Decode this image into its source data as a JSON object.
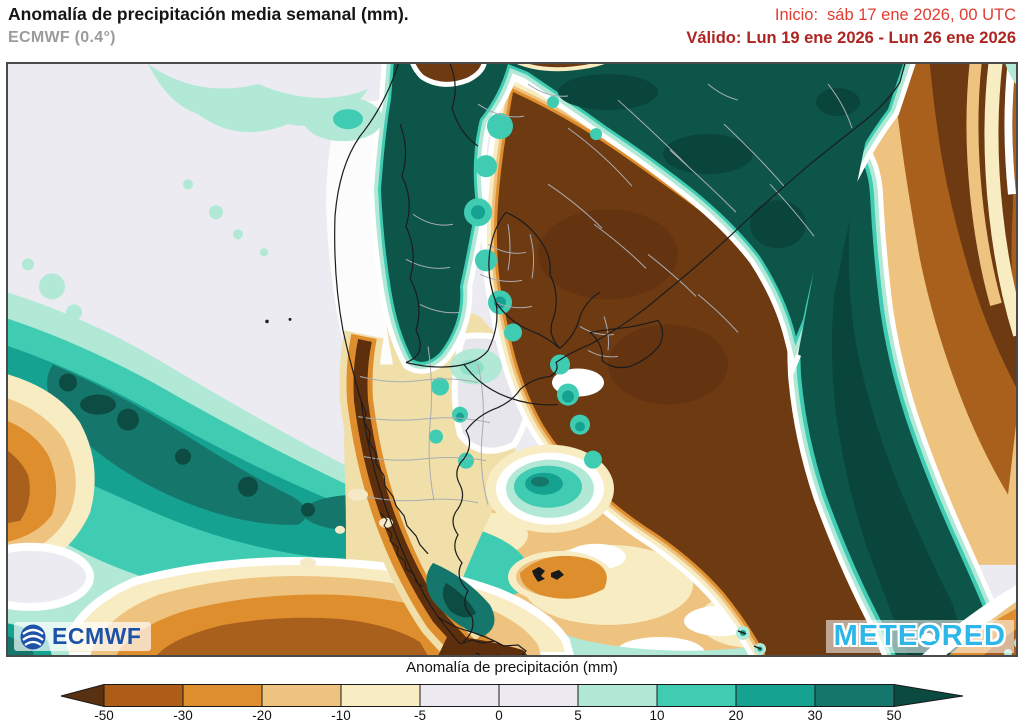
{
  "header": {
    "title": "Anomalía de precipitación media semanal (mm).",
    "model": "ECMWF (0.4°)",
    "init_label": "Inicio:",
    "init_value": "sáb 17 ene 2026, 00 UTC",
    "valid_label": "Válido:",
    "valid_value": "Lun 19 ene 2026 - Lun 26 ene 2026"
  },
  "colorbar": {
    "label": "Anomalía de precipitación (mm)",
    "ticks": [
      "-50",
      "-30",
      "-20",
      "-10",
      "-5",
      "0",
      "5",
      "10",
      "20",
      "30",
      "50"
    ],
    "segment_colors": [
      "#ad5d17",
      "#df8e2d",
      "#eec27f",
      "#f8ecc3",
      "#eceaf0",
      "#eceaf0",
      "#b2e9d6",
      "#40ccb3",
      "#16a291",
      "#15776b"
    ],
    "arrow_left_color": "#5a3110",
    "arrow_right_color": "#0b4a41"
  },
  "logos": {
    "ecmwf": "ECMWF",
    "meteored": "METEORED"
  },
  "palette": {
    "ocean_neutral": "#ecebf1",
    "deficit_extreme": "#6e3a12",
    "deficit_50_30": "#ad5d17",
    "deficit_30_20": "#df8e2d",
    "deficit_20_10": "#eec27f",
    "deficit_10_5": "#f8ecc3",
    "near_zero": "#eceaf0",
    "surplus_5_10": "#b2e9d6",
    "surplus_10_20": "#40ccb3",
    "surplus_20_30": "#16a291",
    "surplus_30_50": "#15776b",
    "surplus_extreme": "#0b4a41",
    "header_red": "#e23b30",
    "header_dark_red": "#ad2420",
    "ecmwf_blue": "#1d52a8",
    "meteored_cyan": "#2db7e9",
    "border_country": "#1c1c1c",
    "border_admin": "#a9adb3"
  }
}
